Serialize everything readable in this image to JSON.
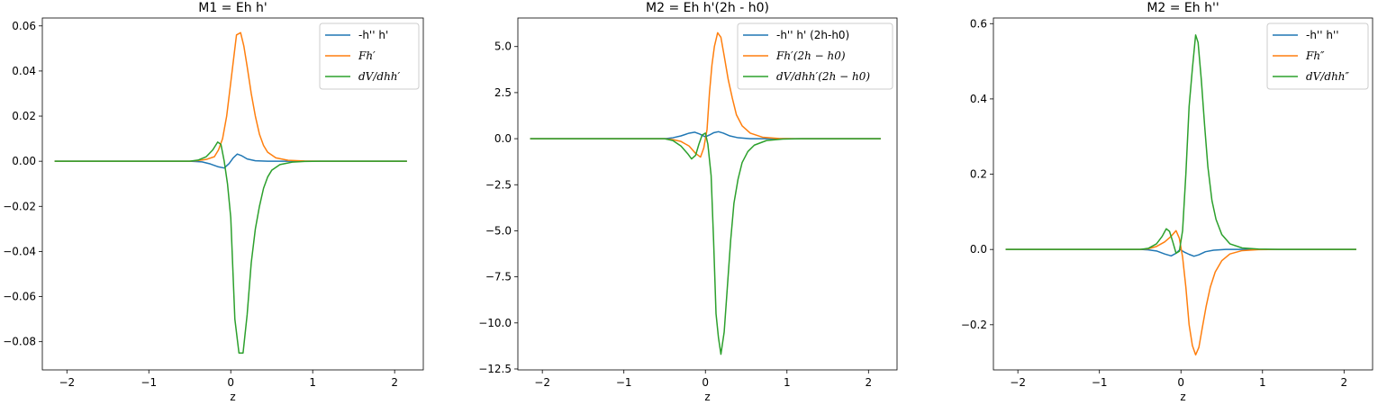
{
  "chart_data": [
    {
      "type": "line",
      "title": "M1 = Eh h'",
      "xlabel": "z",
      "ylabel": "",
      "xlim": [
        -2.3,
        2.35
      ],
      "ylim": [
        -0.0925,
        0.0635
      ],
      "xticks": [
        -2,
        -1,
        0,
        1,
        2
      ],
      "xtick_labels": [
        "−2",
        "−1",
        "0",
        "1",
        "2"
      ],
      "yticks": [
        0.06,
        0.04,
        0.02,
        0.0,
        -0.02,
        -0.04,
        -0.06,
        -0.08
      ],
      "ytick_labels": [
        "0.06",
        "0.04",
        "0.02",
        "0.00",
        "−0.02",
        "−0.04",
        "−0.06",
        "−0.08"
      ],
      "legend_position": "top-right",
      "series": [
        {
          "name": "-h'' h'",
          "color": "#1f77b4",
          "italic": false,
          "points": [
            [
              -2.15,
              0
            ],
            [
              -1.0,
              0
            ],
            [
              -0.5,
              0
            ],
            [
              -0.35,
              -0.0003
            ],
            [
              -0.25,
              -0.0012
            ],
            [
              -0.15,
              -0.0025
            ],
            [
              -0.08,
              -0.003
            ],
            [
              -0.02,
              -0.001
            ],
            [
              0.03,
              0.0015
            ],
            [
              0.08,
              0.0032
            ],
            [
              0.13,
              0.0025
            ],
            [
              0.2,
              0.001
            ],
            [
              0.3,
              0.0002
            ],
            [
              0.45,
              0
            ],
            [
              1.0,
              0
            ],
            [
              2.15,
              0
            ]
          ]
        },
        {
          "name": "Fh′",
          "color": "#ff7f0e",
          "italic": true,
          "points": [
            [
              -2.15,
              0
            ],
            [
              -1.0,
              0
            ],
            [
              -0.5,
              0
            ],
            [
              -0.4,
              0.0003
            ],
            [
              -0.3,
              0.0008
            ],
            [
              -0.2,
              0.002
            ],
            [
              -0.15,
              0.005
            ],
            [
              -0.1,
              0.01
            ],
            [
              -0.05,
              0.02
            ],
            [
              0.0,
              0.035
            ],
            [
              0.04,
              0.047
            ],
            [
              0.07,
              0.056
            ],
            [
              0.12,
              0.057
            ],
            [
              0.16,
              0.051
            ],
            [
              0.2,
              0.042
            ],
            [
              0.25,
              0.03
            ],
            [
              0.3,
              0.02
            ],
            [
              0.35,
              0.012
            ],
            [
              0.4,
              0.007
            ],
            [
              0.45,
              0.004
            ],
            [
              0.55,
              0.0015
            ],
            [
              0.7,
              0.0004
            ],
            [
              0.9,
              0.0001
            ],
            [
              1.1,
              0
            ],
            [
              2.15,
              0
            ]
          ]
        },
        {
          "name": "dV/dhh′",
          "color": "#2ca02c",
          "italic": true,
          "points": [
            [
              -2.15,
              0
            ],
            [
              -1.0,
              0
            ],
            [
              -0.5,
              0
            ],
            [
              -0.4,
              0.0005
            ],
            [
              -0.3,
              0.002
            ],
            [
              -0.22,
              0.005
            ],
            [
              -0.16,
              0.0085
            ],
            [
              -0.12,
              0.0075
            ],
            [
              -0.08,
              0.0
            ],
            [
              -0.04,
              -0.01
            ],
            [
              0.0,
              -0.025
            ],
            [
              0.05,
              -0.07
            ],
            [
              0.1,
              -0.085
            ],
            [
              0.15,
              -0.085
            ],
            [
              0.2,
              -0.068
            ],
            [
              0.25,
              -0.045
            ],
            [
              0.3,
              -0.03
            ],
            [
              0.35,
              -0.02
            ],
            [
              0.4,
              -0.012
            ],
            [
              0.45,
              -0.007
            ],
            [
              0.5,
              -0.004
            ],
            [
              0.6,
              -0.0015
            ],
            [
              0.75,
              -0.0004
            ],
            [
              0.9,
              -0.0001
            ],
            [
              1.1,
              0
            ],
            [
              2.15,
              0
            ]
          ]
        }
      ]
    },
    {
      "type": "line",
      "title": "M2 = Eh h'(2h - h0)",
      "xlabel": "z",
      "ylabel": "",
      "xlim": [
        -2.3,
        2.35
      ],
      "ylim": [
        -12.55,
        6.55
      ],
      "xticks": [
        -2,
        -1,
        0,
        1,
        2
      ],
      "xtick_labels": [
        "−2",
        "−1",
        "0",
        "1",
        "2"
      ],
      "yticks": [
        5.0,
        2.5,
        0.0,
        -2.5,
        -5.0,
        -7.5,
        -10.0,
        -12.5
      ],
      "ytick_labels": [
        "5.0",
        "2.5",
        "0.0",
        "−2.5",
        "−5.0",
        "−7.5",
        "−10.0",
        "−12.5"
      ],
      "legend_position": "top-right",
      "series": [
        {
          "name": "-h'' h' (2h-h0)",
          "color": "#1f77b4",
          "italic": false,
          "points": [
            [
              -2.15,
              0
            ],
            [
              -1.0,
              0
            ],
            [
              -0.5,
              0
            ],
            [
              -0.4,
              0.05
            ],
            [
              -0.3,
              0.15
            ],
            [
              -0.2,
              0.3
            ],
            [
              -0.13,
              0.35
            ],
            [
              -0.07,
              0.25
            ],
            [
              0.0,
              0.1
            ],
            [
              0.05,
              0.2
            ],
            [
              0.1,
              0.32
            ],
            [
              0.16,
              0.38
            ],
            [
              0.22,
              0.3
            ],
            [
              0.3,
              0.15
            ],
            [
              0.4,
              0.05
            ],
            [
              0.55,
              0
            ],
            [
              1.0,
              0
            ],
            [
              2.15,
              0
            ]
          ]
        },
        {
          "name": "Fh′(2h − h0)",
          "color": "#ff7f0e",
          "italic": true,
          "points": [
            [
              -2.15,
              0
            ],
            [
              -1.0,
              0
            ],
            [
              -0.5,
              0
            ],
            [
              -0.4,
              -0.05
            ],
            [
              -0.3,
              -0.15
            ],
            [
              -0.2,
              -0.4
            ],
            [
              -0.12,
              -0.8
            ],
            [
              -0.06,
              -1.0
            ],
            [
              -0.02,
              -0.5
            ],
            [
              0.02,
              0.5
            ],
            [
              0.05,
              2.5
            ],
            [
              0.08,
              4.0
            ],
            [
              0.11,
              5.0
            ],
            [
              0.15,
              5.75
            ],
            [
              0.19,
              5.5
            ],
            [
              0.23,
              4.5
            ],
            [
              0.28,
              3.2
            ],
            [
              0.33,
              2.2
            ],
            [
              0.38,
              1.3
            ],
            [
              0.45,
              0.7
            ],
            [
              0.55,
              0.3
            ],
            [
              0.7,
              0.08
            ],
            [
              0.9,
              0.01
            ],
            [
              1.1,
              0
            ],
            [
              2.15,
              0
            ]
          ]
        },
        {
          "name": "dV/dhh′(2h − h0)",
          "color": "#2ca02c",
          "italic": true,
          "points": [
            [
              -2.15,
              0
            ],
            [
              -1.0,
              0
            ],
            [
              -0.5,
              0
            ],
            [
              -0.4,
              -0.1
            ],
            [
              -0.3,
              -0.4
            ],
            [
              -0.22,
              -0.8
            ],
            [
              -0.17,
              -1.1
            ],
            [
              -0.12,
              -0.9
            ],
            [
              -0.08,
              -0.3
            ],
            [
              -0.04,
              0.2
            ],
            [
              0.0,
              0.3
            ],
            [
              0.03,
              -0.3
            ],
            [
              0.07,
              -2.0
            ],
            [
              0.1,
              -5.5
            ],
            [
              0.13,
              -9.5
            ],
            [
              0.16,
              -10.8
            ],
            [
              0.19,
              -11.7
            ],
            [
              0.23,
              -10.5
            ],
            [
              0.27,
              -8.0
            ],
            [
              0.31,
              -5.5
            ],
            [
              0.35,
              -3.5
            ],
            [
              0.4,
              -2.2
            ],
            [
              0.45,
              -1.3
            ],
            [
              0.52,
              -0.7
            ],
            [
              0.6,
              -0.35
            ],
            [
              0.75,
              -0.1
            ],
            [
              0.95,
              -0.02
            ],
            [
              1.2,
              0
            ],
            [
              2.15,
              0
            ]
          ]
        }
      ]
    },
    {
      "type": "line",
      "title": "M2 = Eh h''",
      "xlabel": "z",
      "ylabel": "",
      "xlim": [
        -2.3,
        2.35
      ],
      "ylim": [
        -0.32,
        0.615
      ],
      "xticks": [
        -2,
        -1,
        0,
        1,
        2
      ],
      "xtick_labels": [
        "−2",
        "−1",
        "0",
        "1",
        "2"
      ],
      "yticks": [
        0.6,
        0.4,
        0.2,
        0.0,
        -0.2
      ],
      "ytick_labels": [
        "0.6",
        "0.4",
        "0.2",
        "0.0",
        "−0.2"
      ],
      "legend_position": "top-right",
      "series": [
        {
          "name": "-h'' h''",
          "color": "#1f77b4",
          "italic": false,
          "points": [
            [
              -2.15,
              0
            ],
            [
              -1.0,
              0
            ],
            [
              -0.5,
              0
            ],
            [
              -0.4,
              -0.001
            ],
            [
              -0.3,
              -0.004
            ],
            [
              -0.2,
              -0.012
            ],
            [
              -0.12,
              -0.017
            ],
            [
              -0.06,
              -0.01
            ],
            [
              -0.01,
              0.0
            ],
            [
              0.04,
              -0.007
            ],
            [
              0.1,
              -0.013
            ],
            [
              0.16,
              -0.018
            ],
            [
              0.22,
              -0.014
            ],
            [
              0.3,
              -0.006
            ],
            [
              0.4,
              -0.002
            ],
            [
              0.55,
              0
            ],
            [
              1.0,
              0
            ],
            [
              2.15,
              0
            ]
          ]
        },
        {
          "name": "Fh″",
          "color": "#ff7f0e",
          "italic": true,
          "points": [
            [
              -2.15,
              0
            ],
            [
              -1.0,
              0
            ],
            [
              -0.5,
              0
            ],
            [
              -0.4,
              0.002
            ],
            [
              -0.3,
              0.008
            ],
            [
              -0.2,
              0.02
            ],
            [
              -0.12,
              0.035
            ],
            [
              -0.06,
              0.05
            ],
            [
              -0.02,
              0.03
            ],
            [
              0.02,
              -0.02
            ],
            [
              0.06,
              -0.1
            ],
            [
              0.1,
              -0.2
            ],
            [
              0.14,
              -0.255
            ],
            [
              0.18,
              -0.28
            ],
            [
              0.22,
              -0.26
            ],
            [
              0.26,
              -0.21
            ],
            [
              0.31,
              -0.15
            ],
            [
              0.36,
              -0.1
            ],
            [
              0.42,
              -0.06
            ],
            [
              0.5,
              -0.03
            ],
            [
              0.6,
              -0.012
            ],
            [
              0.75,
              -0.003
            ],
            [
              0.95,
              -0.0005
            ],
            [
              1.2,
              0
            ],
            [
              2.15,
              0
            ]
          ]
        },
        {
          "name": "dV/dhh″",
          "color": "#2ca02c",
          "italic": true,
          "points": [
            [
              -2.15,
              0
            ],
            [
              -1.0,
              0
            ],
            [
              -0.5,
              0
            ],
            [
              -0.4,
              0.003
            ],
            [
              -0.3,
              0.015
            ],
            [
              -0.23,
              0.035
            ],
            [
              -0.18,
              0.055
            ],
            [
              -0.14,
              0.048
            ],
            [
              -0.1,
              0.02
            ],
            [
              -0.06,
              -0.01
            ],
            [
              -0.02,
              -0.005
            ],
            [
              0.02,
              0.05
            ],
            [
              0.06,
              0.2
            ],
            [
              0.1,
              0.38
            ],
            [
              0.14,
              0.48
            ],
            [
              0.18,
              0.57
            ],
            [
              0.21,
              0.55
            ],
            [
              0.25,
              0.45
            ],
            [
              0.29,
              0.33
            ],
            [
              0.33,
              0.22
            ],
            [
              0.38,
              0.13
            ],
            [
              0.43,
              0.08
            ],
            [
              0.5,
              0.04
            ],
            [
              0.6,
              0.015
            ],
            [
              0.75,
              0.004
            ],
            [
              0.95,
              0.001
            ],
            [
              1.2,
              0
            ],
            [
              2.15,
              0
            ]
          ]
        }
      ]
    }
  ]
}
